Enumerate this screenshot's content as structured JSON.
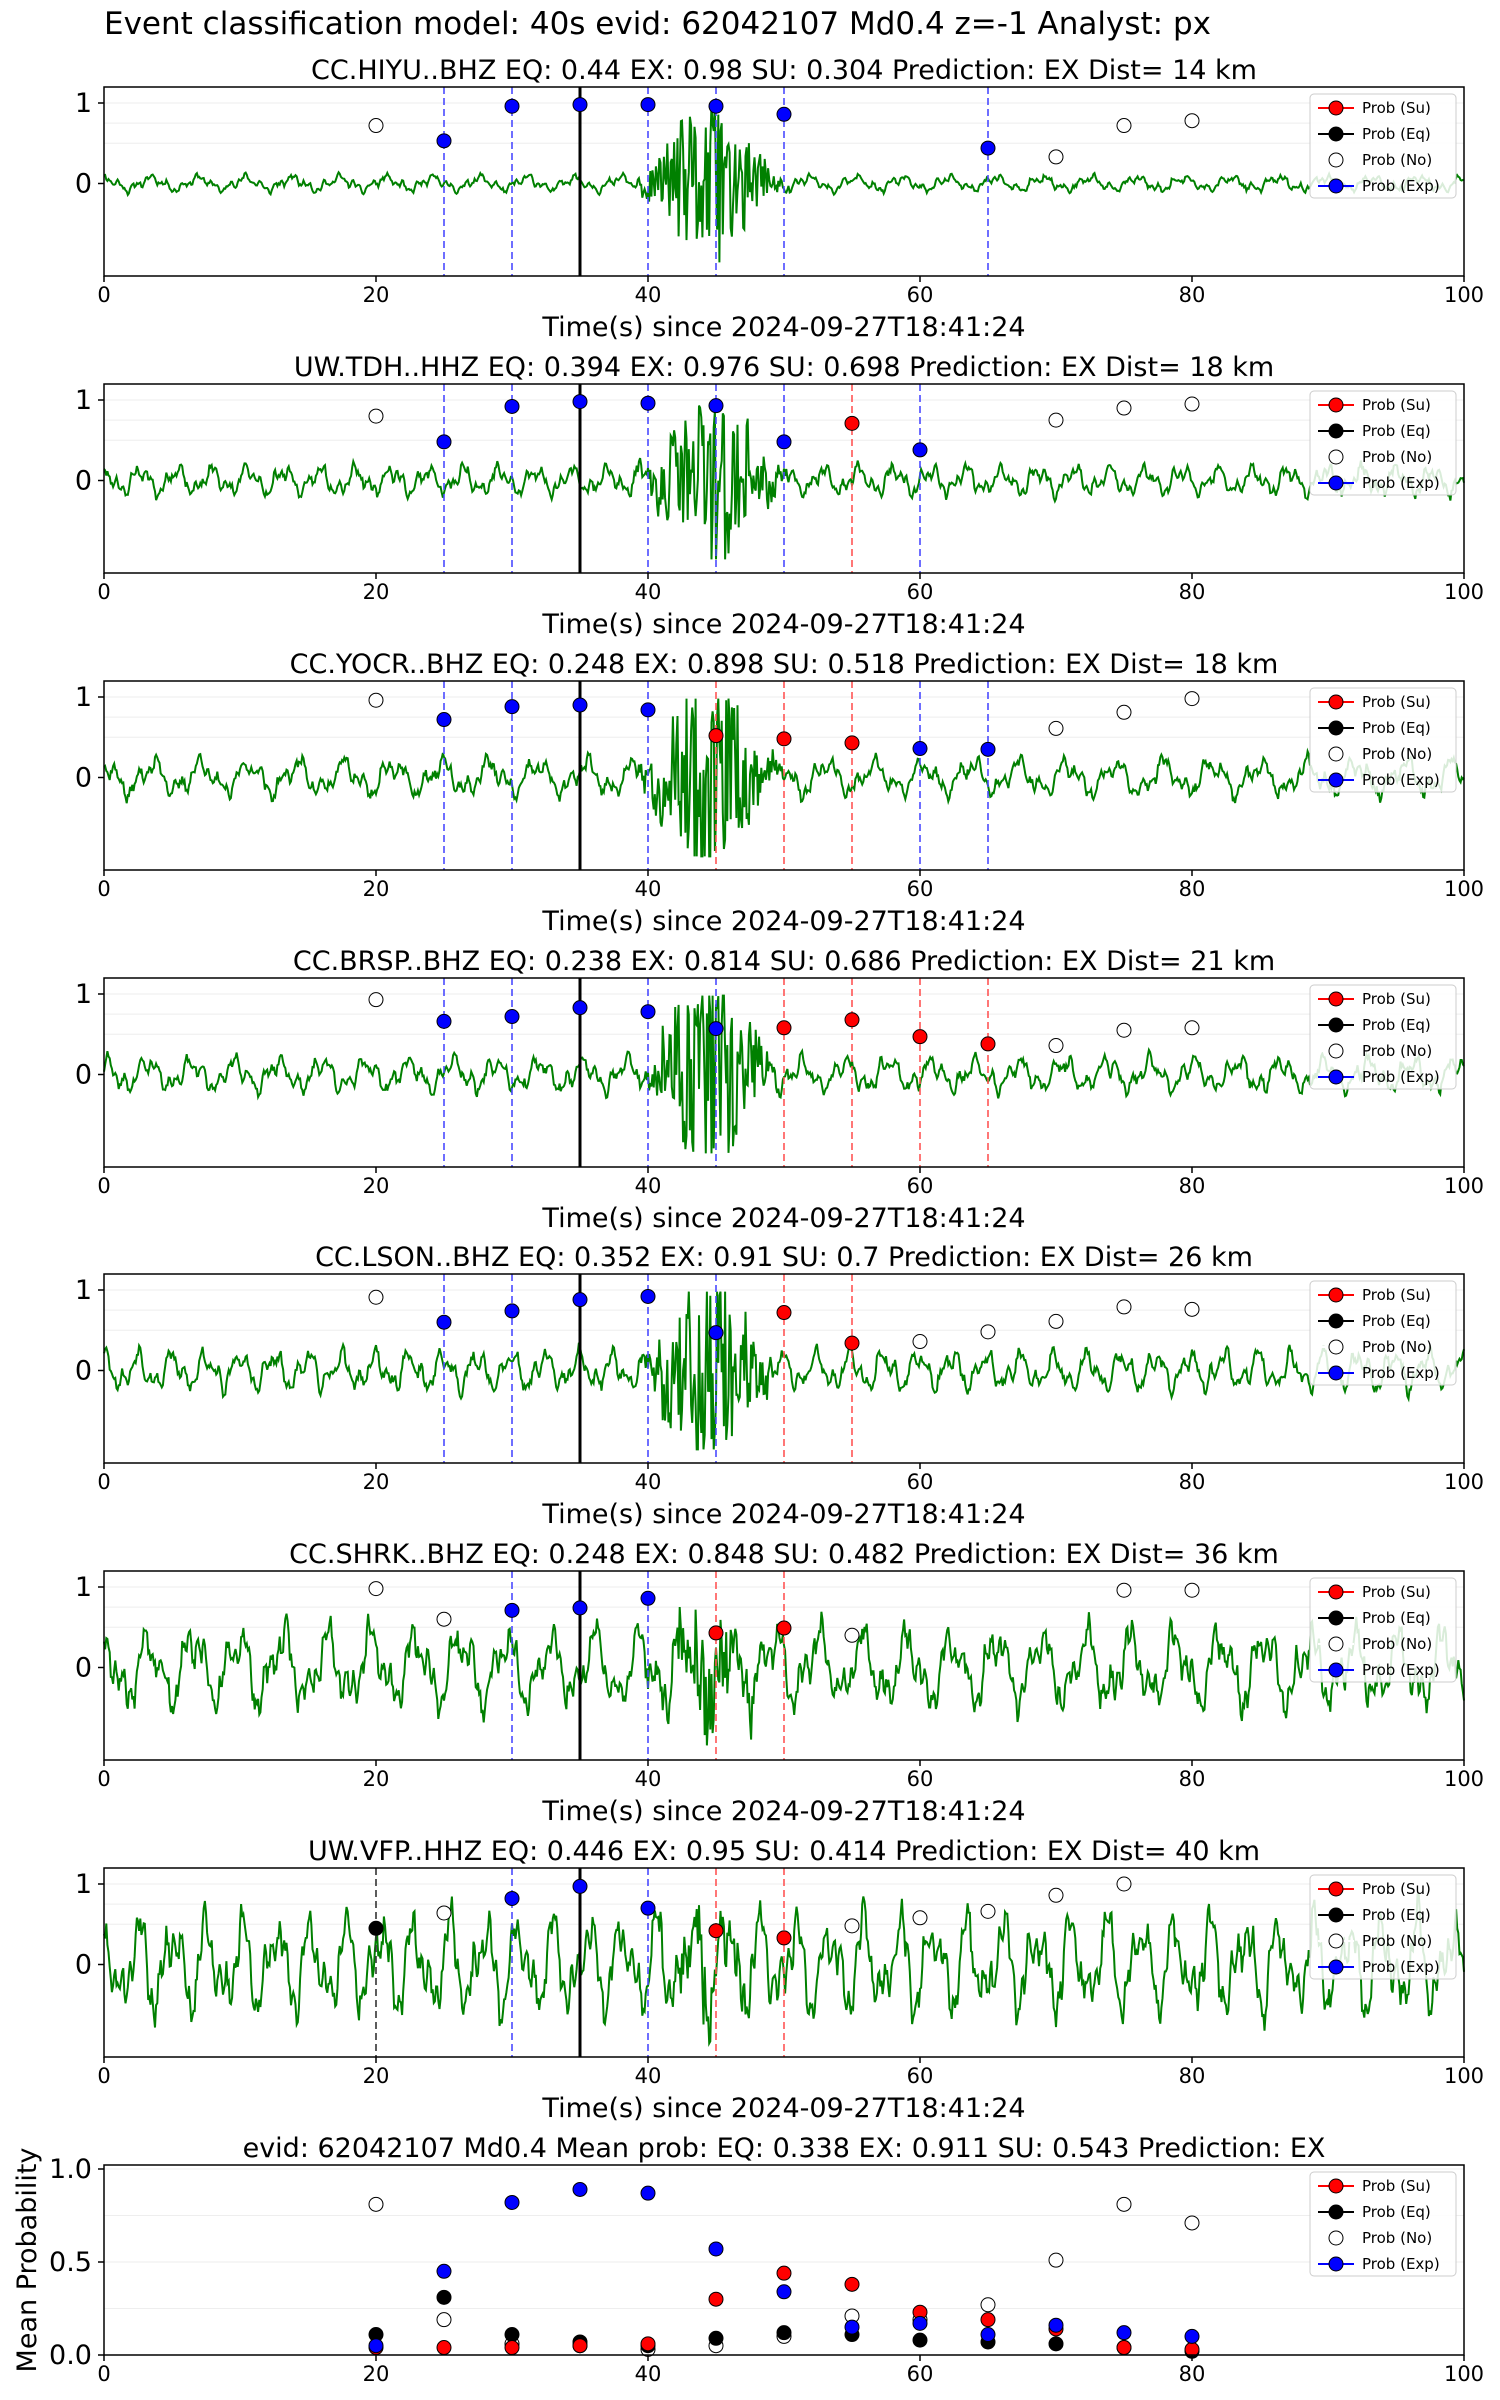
{
  "suptitle": "Event classification model: 40s evid: 62042107 Md0.4 z=-1 Analyst: px",
  "colors": {
    "su": "#ff0000",
    "eq": "#000000",
    "no": "#ffffff",
    "exp": "#0000ff",
    "trace": "#008000",
    "exp_line": "#4a4aff",
    "su_line": "#ff5555"
  },
  "legend": [
    "Prob (Su)",
    "Prob (Eq)",
    "Prob (No)",
    "Prob (Exp)"
  ],
  "chart_data": [
    {
      "type": "line",
      "title": "CC.HIYU..BHZ   EQ: 0.44  EX: 0.98  SU: 0.304   Prediction: EX    Dist= 14 km",
      "xlabel": "Time(s) since 2024-09-27T18:41:24",
      "ylabel": "",
      "xlim": [
        0,
        100
      ],
      "xticks": [
        0,
        20,
        40,
        60,
        80,
        100
      ],
      "yticks": [
        "1",
        "0"
      ],
      "legend_position": "upper right",
      "series_name": "waveform",
      "onset": 35,
      "seed": 11,
      "noise_amp": 0.12,
      "burst_amp": 0.85,
      "su_points": [],
      "eq_points": [],
      "no_points": [
        [
          20,
          0.72
        ],
        [
          70,
          0.33
        ],
        [
          75,
          0.72
        ],
        [
          80,
          0.78
        ]
      ],
      "exp_points": [
        [
          25,
          0.53
        ],
        [
          30,
          0.96
        ],
        [
          35,
          0.98
        ],
        [
          40,
          0.98
        ],
        [
          45,
          0.96
        ],
        [
          50,
          0.86
        ],
        [
          65,
          0.44
        ]
      ],
      "vlines_exp": [
        25,
        30,
        40,
        45,
        50,
        65
      ],
      "vlines_su": [],
      "vlines_eq": []
    },
    {
      "type": "line",
      "title": "UW.TDH..HHZ   EQ: 0.394  EX: 0.976  SU: 0.698   Prediction: EX    Dist= 18 km",
      "xlabel": "Time(s) since 2024-09-27T18:41:24",
      "ylabel": "",
      "xlim": [
        0,
        100
      ],
      "xticks": [
        0,
        20,
        40,
        60,
        80,
        100
      ],
      "yticks": [
        "1",
        "0"
      ],
      "legend_position": "upper right",
      "series_name": "waveform",
      "onset": 35,
      "seed": 23,
      "noise_amp": 0.22,
      "burst_amp": 0.9,
      "su_points": [
        [
          55,
          0.71
        ]
      ],
      "eq_points": [],
      "no_points": [
        [
          20,
          0.8
        ],
        [
          70,
          0.75
        ],
        [
          75,
          0.9
        ],
        [
          80,
          0.95
        ]
      ],
      "exp_points": [
        [
          25,
          0.48
        ],
        [
          30,
          0.92
        ],
        [
          35,
          0.98
        ],
        [
          40,
          0.96
        ],
        [
          45,
          0.93
        ],
        [
          50,
          0.48
        ],
        [
          60,
          0.38
        ]
      ],
      "vlines_exp": [
        25,
        30,
        40,
        45,
        50,
        60
      ],
      "vlines_su": [
        55
      ],
      "vlines_eq": []
    },
    {
      "type": "line",
      "title": "CC.YOCR..BHZ   EQ: 0.248  EX: 0.898  SU: 0.518   Prediction: EX    Dist= 18 km",
      "xlabel": "Time(s) since 2024-09-27T18:41:24",
      "ylabel": "",
      "xlim": [
        0,
        100
      ],
      "xticks": [
        0,
        20,
        40,
        60,
        80,
        100
      ],
      "yticks": [
        "1",
        "0"
      ],
      "legend_position": "upper right",
      "series_name": "waveform",
      "onset": 35,
      "seed": 37,
      "noise_amp": 0.28,
      "burst_amp": 0.95,
      "su_points": [
        [
          45,
          0.52
        ],
        [
          50,
          0.48
        ],
        [
          55,
          0.43
        ]
      ],
      "eq_points": [],
      "no_points": [
        [
          20,
          0.96
        ],
        [
          70,
          0.61
        ],
        [
          75,
          0.81
        ],
        [
          80,
          0.98
        ]
      ],
      "exp_points": [
        [
          25,
          0.72
        ],
        [
          30,
          0.88
        ],
        [
          35,
          0.9
        ],
        [
          40,
          0.84
        ],
        [
          60,
          0.36
        ],
        [
          65,
          0.35
        ]
      ],
      "vlines_exp": [
        25,
        30,
        40,
        60,
        65
      ],
      "vlines_su": [
        45,
        50,
        55
      ],
      "vlines_eq": []
    },
    {
      "type": "line",
      "title": "CC.BRSP..BHZ   EQ: 0.238  EX: 0.814  SU: 0.686   Prediction: EX    Dist= 21 km",
      "xlabel": "Time(s) since 2024-09-27T18:41:24",
      "ylabel": "",
      "xlim": [
        0,
        100
      ],
      "xticks": [
        0,
        20,
        40,
        60,
        80,
        100
      ],
      "yticks": [
        "1",
        "0"
      ],
      "legend_position": "upper right",
      "series_name": "waveform",
      "onset": 35,
      "seed": 41,
      "noise_amp": 0.26,
      "burst_amp": 0.95,
      "su_points": [
        [
          50,
          0.58
        ],
        [
          55,
          0.68
        ],
        [
          60,
          0.47
        ],
        [
          65,
          0.38
        ]
      ],
      "eq_points": [],
      "no_points": [
        [
          20,
          0.93
        ],
        [
          70,
          0.36
        ],
        [
          75,
          0.55
        ],
        [
          80,
          0.58
        ]
      ],
      "exp_points": [
        [
          25,
          0.66
        ],
        [
          30,
          0.72
        ],
        [
          35,
          0.83
        ],
        [
          40,
          0.78
        ],
        [
          45,
          0.57
        ]
      ],
      "vlines_exp": [
        25,
        30,
        40,
        45
      ],
      "vlines_su": [
        50,
        55,
        60,
        65
      ],
      "vlines_eq": []
    },
    {
      "type": "line",
      "title": "CC.LSON..BHZ   EQ: 0.352  EX: 0.91  SU: 0.7   Prediction: EX    Dist= 26 km",
      "xlabel": "Time(s) since 2024-09-27T18:41:24",
      "ylabel": "",
      "xlim": [
        0,
        100
      ],
      "xticks": [
        0,
        20,
        40,
        60,
        80,
        100
      ],
      "yticks": [
        "1",
        "0"
      ],
      "legend_position": "upper right",
      "series_name": "waveform",
      "onset": 35,
      "seed": 53,
      "noise_amp": 0.3,
      "burst_amp": 0.95,
      "su_points": [
        [
          50,
          0.72
        ],
        [
          55,
          0.34
        ]
      ],
      "eq_points": [],
      "no_points": [
        [
          20,
          0.91
        ],
        [
          60,
          0.36
        ],
        [
          65,
          0.48
        ],
        [
          70,
          0.61
        ],
        [
          75,
          0.79
        ],
        [
          80,
          0.76
        ]
      ],
      "exp_points": [
        [
          25,
          0.6
        ],
        [
          30,
          0.74
        ],
        [
          35,
          0.88
        ],
        [
          40,
          0.92
        ],
        [
          45,
          0.47
        ]
      ],
      "vlines_exp": [
        25,
        30,
        40,
        45
      ],
      "vlines_su": [
        50,
        55
      ],
      "vlines_eq": []
    },
    {
      "type": "line",
      "title": "CC.SHRK..BHZ   EQ: 0.248  EX: 0.848  SU: 0.482   Prediction: EX    Dist= 36 km",
      "xlabel": "Time(s) since 2024-09-27T18:41:24",
      "ylabel": "",
      "xlim": [
        0,
        100
      ],
      "xticks": [
        0,
        20,
        40,
        60,
        80,
        100
      ],
      "yticks": [
        "1",
        "0"
      ],
      "legend_position": "upper right",
      "series_name": "waveform",
      "onset": 35,
      "seed": 67,
      "noise_amp": 0.6,
      "burst_amp": 0.4,
      "su_points": [
        [
          45,
          0.43
        ],
        [
          50,
          0.49
        ]
      ],
      "eq_points": [],
      "no_points": [
        [
          20,
          0.98
        ],
        [
          25,
          0.6
        ],
        [
          55,
          0.4
        ],
        [
          75,
          0.96
        ],
        [
          80,
          0.96
        ]
      ],
      "exp_points": [
        [
          30,
          0.71
        ],
        [
          35,
          0.74
        ],
        [
          40,
          0.86
        ]
      ],
      "vlines_exp": [
        30,
        40
      ],
      "vlines_su": [
        45,
        50
      ],
      "vlines_eq": []
    },
    {
      "type": "line",
      "title": "UW.VFP..HHZ   EQ: 0.446  EX: 0.95  SU: 0.414   Prediction: EX    Dist= 40 km",
      "xlabel": "Time(s) since 2024-09-27T18:41:24",
      "ylabel": "",
      "xlim": [
        0,
        100
      ],
      "xticks": [
        0,
        20,
        40,
        60,
        80,
        100
      ],
      "yticks": [
        "1",
        "0"
      ],
      "legend_position": "upper right",
      "series_name": "waveform",
      "onset": 35,
      "seed": 79,
      "noise_amp": 0.75,
      "burst_amp": 0.3,
      "su_points": [
        [
          45,
          0.42
        ],
        [
          50,
          0.33
        ]
      ],
      "eq_points": [
        [
          20,
          0.45
        ]
      ],
      "no_points": [
        [
          25,
          0.64
        ],
        [
          55,
          0.48
        ],
        [
          60,
          0.58
        ],
        [
          65,
          0.66
        ],
        [
          70,
          0.86
        ],
        [
          75,
          1.0
        ]
      ],
      "exp_points": [
        [
          30,
          0.82
        ],
        [
          35,
          0.97
        ],
        [
          40,
          0.7
        ]
      ],
      "vlines_exp": [
        30,
        40
      ],
      "vlines_su": [
        45,
        50
      ],
      "vlines_eq": [
        20
      ]
    },
    {
      "type": "scatter",
      "title": "evid: 62042107  Md0.4   Mean prob:   EQ: 0.338  EX: 0.911  SU: 0.543   Prediction: EX",
      "xlabel": "",
      "ylabel": "Mean Probability",
      "xlim": [
        0,
        100
      ],
      "ylim": [
        0,
        1.0
      ],
      "xticks": [
        0,
        20,
        40,
        60,
        80,
        100
      ],
      "yticks": [
        "1.0",
        "0.5",
        "0.0"
      ],
      "legend_position": "upper right",
      "su_points": [
        [
          20,
          0.04
        ],
        [
          25,
          0.04
        ],
        [
          30,
          0.04
        ],
        [
          35,
          0.05
        ],
        [
          40,
          0.06
        ],
        [
          45,
          0.3
        ],
        [
          50,
          0.44
        ],
        [
          55,
          0.38
        ],
        [
          60,
          0.23
        ],
        [
          65,
          0.19
        ],
        [
          70,
          0.14
        ],
        [
          75,
          0.04
        ],
        [
          80,
          0.03
        ]
      ],
      "eq_points": [
        [
          20,
          0.11
        ],
        [
          25,
          0.31
        ],
        [
          30,
          0.11
        ],
        [
          35,
          0.07
        ],
        [
          40,
          0.05
        ],
        [
          45,
          0.09
        ],
        [
          50,
          0.12
        ],
        [
          55,
          0.11
        ],
        [
          60,
          0.08
        ],
        [
          65,
          0.07
        ],
        [
          70,
          0.06
        ],
        [
          75,
          0.04
        ],
        [
          80,
          0.02
        ]
      ],
      "no_points": [
        [
          20,
          0.81
        ],
        [
          25,
          0.19
        ],
        [
          30,
          0.06
        ],
        [
          35,
          0.05
        ],
        [
          40,
          0.03
        ],
        [
          45,
          0.05
        ],
        [
          50,
          0.1
        ],
        [
          55,
          0.21
        ],
        [
          60,
          0.19
        ],
        [
          65,
          0.27
        ],
        [
          70,
          0.51
        ],
        [
          75,
          0.81
        ],
        [
          80,
          0.71
        ]
      ],
      "exp_points": [
        [
          20,
          0.05
        ],
        [
          25,
          0.45
        ],
        [
          30,
          0.82
        ],
        [
          35,
          0.89
        ],
        [
          40,
          0.87
        ],
        [
          45,
          0.57
        ],
        [
          50,
          0.34
        ],
        [
          55,
          0.15
        ],
        [
          60,
          0.17
        ],
        [
          65,
          0.11
        ],
        [
          70,
          0.16
        ],
        [
          75,
          0.12
        ],
        [
          80,
          0.1
        ]
      ]
    }
  ]
}
